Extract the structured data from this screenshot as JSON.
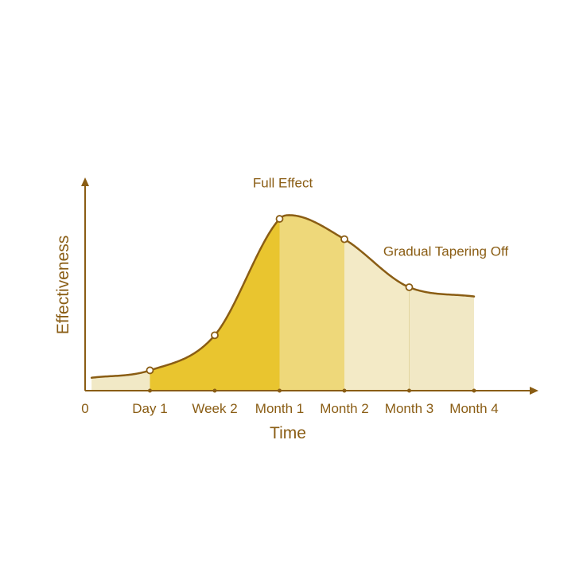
{
  "chart_data": {
    "type": "area",
    "title": "",
    "xlabel": "Time",
    "ylabel": "Effectiveness",
    "x_ticks": [
      "0",
      "Day 1",
      "Week 2",
      "Month 1",
      "Month 2",
      "Month 3",
      "Month 4"
    ],
    "x_tick_index": [
      0,
      1,
      2,
      3,
      4,
      5,
      6
    ],
    "curve": {
      "x": [
        0.1,
        1,
        2,
        3,
        3.15,
        4,
        5,
        6
      ],
      "y": [
        0.07,
        0.11,
        0.3,
        0.93,
        0.95,
        0.82,
        0.56,
        0.51
      ]
    },
    "markers": [
      {
        "x": 1,
        "y": 0.11
      },
      {
        "x": 2,
        "y": 0.3
      },
      {
        "x": 3,
        "y": 0.93
      },
      {
        "x": 4,
        "y": 0.82
      },
      {
        "x": 5,
        "y": 0.56
      }
    ],
    "bands": [
      {
        "from": 0.1,
        "to": 1,
        "color": "#f1e9c6"
      },
      {
        "from": 1,
        "to": 3,
        "color": "#e9c52f"
      },
      {
        "from": 3,
        "to": 4,
        "color": "#eed87a"
      },
      {
        "from": 4,
        "to": 5,
        "color": "#f3eac6"
      },
      {
        "from": 5,
        "to": 6,
        "color": "#f1e8c5"
      }
    ],
    "annotations": [
      {
        "text": "Full Effect",
        "x": 3.05,
        "y": 1.1
      },
      {
        "text": "Gradual Tapering Off",
        "x": 4.6,
        "y": 0.73
      }
    ],
    "ylim": [
      0,
      1.15
    ],
    "grid": false,
    "legend": "none",
    "colors": {
      "axis": "#8a5d14",
      "curve": "#8a5d14",
      "marker_fill": "#ffffff",
      "text": "#8a5d14"
    }
  }
}
